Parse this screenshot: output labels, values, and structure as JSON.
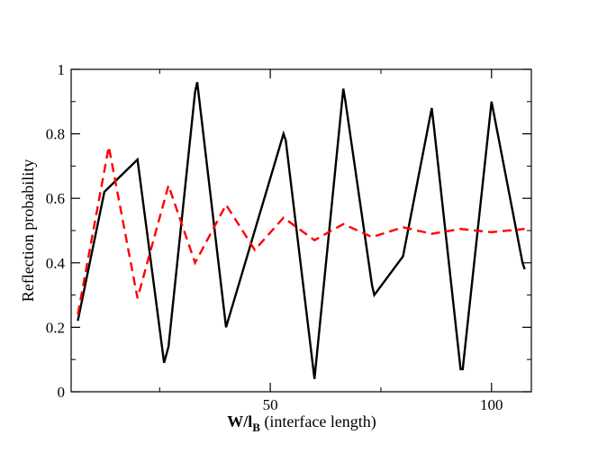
{
  "chart_data": {
    "type": "line",
    "title": "",
    "xlabel_main": "W/l",
    "xlabel_sub": "B",
    "xlabel_rest": " (interface length)",
    "ylabel": "Reflection probability",
    "xlim": [
      5,
      109
    ],
    "ylim": [
      0,
      1
    ],
    "xticks": [
      {
        "value": 50,
        "label": "50"
      },
      {
        "value": 100,
        "label": "100"
      }
    ],
    "xminor": [
      25,
      75
    ],
    "yticks": [
      {
        "value": 0,
        "label": "0"
      },
      {
        "value": 0.2,
        "label": "0.2"
      },
      {
        "value": 0.4,
        "label": "0.4"
      },
      {
        "value": 0.6,
        "label": "0.6"
      },
      {
        "value": 0.8,
        "label": "0.8"
      },
      {
        "value": 1.0,
        "label": "1"
      }
    ],
    "yminor": [
      0.1,
      0.3,
      0.5,
      0.7,
      0.9
    ],
    "series": [
      {
        "name": "solid",
        "color": "#000000",
        "dash": "none",
        "points": [
          [
            6.5,
            0.22
          ],
          [
            12.5,
            0.62
          ],
          [
            20,
            0.72
          ],
          [
            26,
            0.09
          ],
          [
            27,
            0.14
          ],
          [
            33,
            0.93
          ],
          [
            33.5,
            0.96
          ],
          [
            40,
            0.2
          ],
          [
            53,
            0.8
          ],
          [
            53.5,
            0.78
          ],
          [
            60,
            0.04
          ],
          [
            66.5,
            0.94
          ],
          [
            67,
            0.9
          ],
          [
            73,
            0.33
          ],
          [
            73.5,
            0.3
          ],
          [
            80,
            0.42
          ],
          [
            86.5,
            0.88
          ],
          [
            87,
            0.82
          ],
          [
            93,
            0.07
          ],
          [
            93.5,
            0.07
          ],
          [
            100,
            0.9
          ],
          [
            107,
            0.4
          ],
          [
            107.5,
            0.38
          ]
        ]
      },
      {
        "name": "dashed",
        "color": "#ff0000",
        "dash": "10,6",
        "points": [
          [
            6.5,
            0.24
          ],
          [
            13.5,
            0.76
          ],
          [
            20,
            0.29
          ],
          [
            27,
            0.64
          ],
          [
            33,
            0.4
          ],
          [
            40,
            0.58
          ],
          [
            46.5,
            0.44
          ],
          [
            53,
            0.54
          ],
          [
            60,
            0.47
          ],
          [
            66.5,
            0.52
          ],
          [
            73,
            0.48
          ],
          [
            80,
            0.51
          ],
          [
            86.5,
            0.49
          ],
          [
            93,
            0.505
          ],
          [
            100,
            0.495
          ],
          [
            107.5,
            0.505
          ]
        ]
      }
    ]
  }
}
